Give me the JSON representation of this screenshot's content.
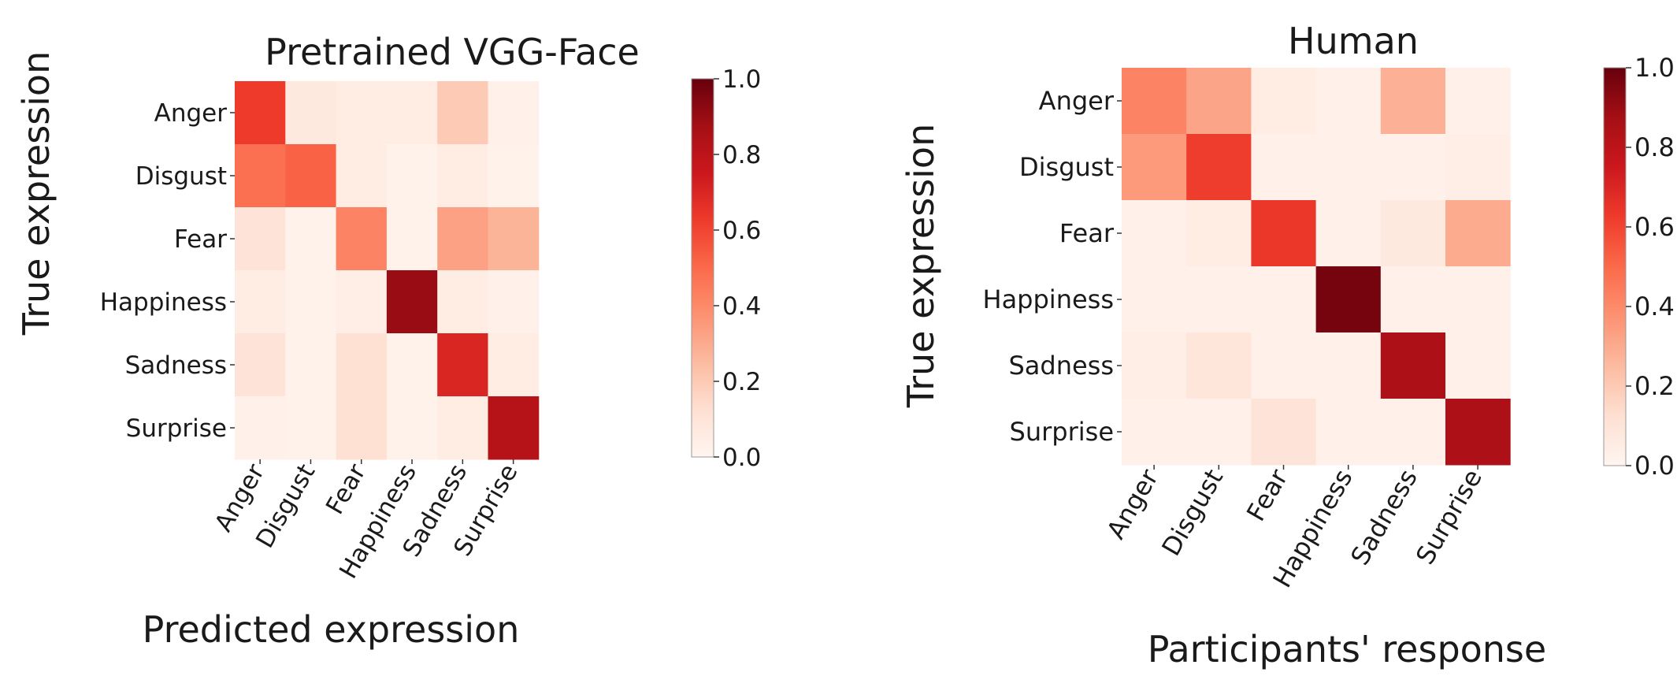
{
  "chart_data": [
    {
      "type": "heatmap",
      "title": "Pretrained VGG-Face",
      "xlabel": "Predicted expression",
      "ylabel": "True expression",
      "categories": [
        "Anger",
        "Disgust",
        "Fear",
        "Happiness",
        "Sadness",
        "Surprise"
      ],
      "rows": [
        "Anger",
        "Disgust",
        "Fear",
        "Happiness",
        "Sadness",
        "Surprise"
      ],
      "values": [
        [
          0.63,
          0.07,
          0.05,
          0.05,
          0.2,
          0.03
        ],
        [
          0.48,
          0.52,
          0.05,
          0.02,
          0.05,
          0.02
        ],
        [
          0.1,
          0.02,
          0.42,
          0.02,
          0.33,
          0.27
        ],
        [
          0.05,
          0.02,
          0.04,
          0.9,
          0.05,
          0.03
        ],
        [
          0.1,
          0.02,
          0.12,
          0.02,
          0.7,
          0.05
        ],
        [
          0.03,
          0.02,
          0.12,
          0.02,
          0.05,
          0.82
        ]
      ],
      "colorbar": {
        "min": 0.0,
        "max": 1.0,
        "ticks": [
          "0.0",
          "0.2",
          "0.4",
          "0.6",
          "0.8",
          "1.0"
        ]
      }
    },
    {
      "type": "heatmap",
      "title": "Human",
      "xlabel": "Participants' response",
      "ylabel": "True expression",
      "categories": [
        "Anger",
        "Disgust",
        "Fear",
        "Happiness",
        "Sadness",
        "Surprise"
      ],
      "rows": [
        "Anger",
        "Disgust",
        "Fear",
        "Happiness",
        "Sadness",
        "Surprise"
      ],
      "values": [
        [
          0.42,
          0.32,
          0.05,
          0.03,
          0.28,
          0.03
        ],
        [
          0.35,
          0.62,
          0.03,
          0.03,
          0.03,
          0.04
        ],
        [
          0.03,
          0.05,
          0.64,
          0.03,
          0.07,
          0.3
        ],
        [
          0.03,
          0.03,
          0.03,
          0.97,
          0.03,
          0.03
        ],
        [
          0.04,
          0.09,
          0.03,
          0.03,
          0.85,
          0.03
        ],
        [
          0.03,
          0.03,
          0.1,
          0.03,
          0.03,
          0.85
        ]
      ],
      "colorbar": {
        "min": 0.0,
        "max": 1.0,
        "ticks": [
          "0.0",
          "0.2",
          "0.4",
          "0.6",
          "0.8",
          "1.0"
        ]
      }
    }
  ]
}
